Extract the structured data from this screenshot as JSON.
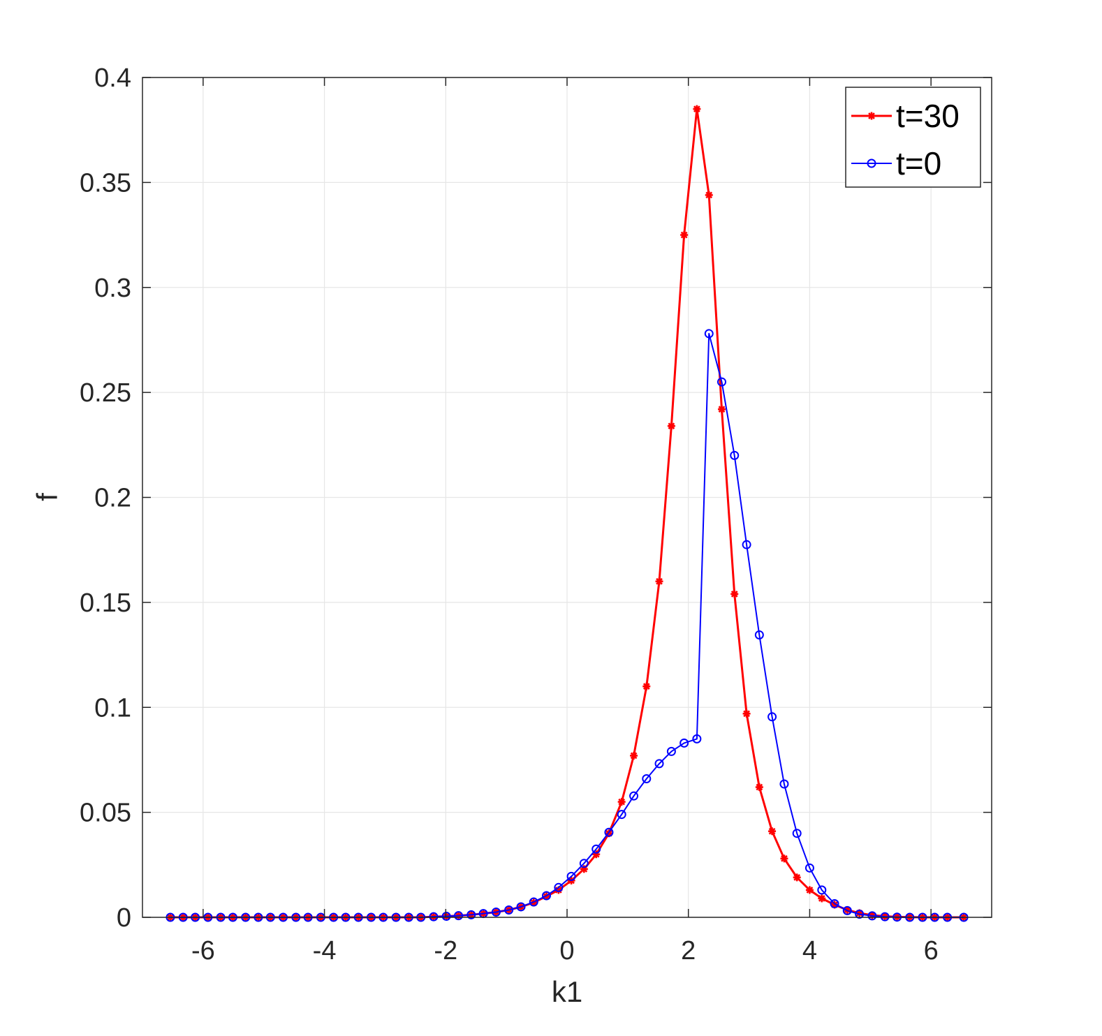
{
  "chart_data": {
    "type": "line",
    "title": "",
    "xlabel": "k1",
    "ylabel": "f",
    "xlim": [
      -7,
      7
    ],
    "ylim": [
      0,
      0.4
    ],
    "xticks": [
      "-6",
      "-4",
      "-2",
      "0",
      "2",
      "4",
      "6"
    ],
    "yticks": [
      "0",
      "0.05",
      "0.1",
      "0.15",
      "0.2",
      "0.25",
      "0.3",
      "0.35",
      "0.4"
    ],
    "grid": true,
    "legend_position": "top-right",
    "x": [
      -6.54,
      -6.33,
      -6.13,
      -5.92,
      -5.71,
      -5.51,
      -5.3,
      -5.09,
      -4.89,
      -4.68,
      -4.47,
      -4.27,
      -4.06,
      -3.85,
      -3.65,
      -3.44,
      -3.23,
      -3.03,
      -2.82,
      -2.61,
      -2.41,
      -2.2,
      -1.99,
      -1.79,
      -1.58,
      -1.38,
      -1.17,
      -0.96,
      -0.76,
      -0.55,
      -0.34,
      -0.14,
      0.07,
      0.28,
      0.48,
      0.69,
      0.9,
      1.1,
      1.31,
      1.52,
      1.72,
      1.93,
      2.14,
      2.34,
      2.55,
      2.76,
      2.96,
      3.17,
      3.38,
      3.58,
      3.79,
      4.0,
      4.2,
      4.41,
      4.62,
      4.82,
      5.03,
      5.24,
      5.44,
      5.65,
      5.86,
      6.06,
      6.27,
      6.54
    ],
    "series": [
      {
        "name": "t=30",
        "color": "#ff0000",
        "marker": "asterisk",
        "values": [
          0,
          0,
          0,
          0,
          0,
          0,
          0,
          0,
          0,
          0,
          0,
          0,
          0,
          0,
          0,
          0,
          0,
          0,
          0,
          0,
          0,
          0.0003,
          0.0005,
          0.0008,
          0.0012,
          0.0018,
          0.0025,
          0.0035,
          0.005,
          0.007,
          0.01,
          0.013,
          0.0175,
          0.023,
          0.03,
          0.04,
          0.055,
          0.077,
          0.11,
          0.16,
          0.234,
          0.325,
          0.385,
          0.344,
          0.242,
          0.154,
          0.097,
          0.062,
          0.041,
          0.028,
          0.019,
          0.013,
          0.009,
          0.006,
          0.0035,
          0.002,
          0.001,
          0.0005,
          0.0002,
          0.0001,
          0,
          0,
          0,
          0
        ]
      },
      {
        "name": "t=0",
        "color": "#0000ff",
        "marker": "circle",
        "values": [
          0,
          0,
          0,
          0,
          0,
          0,
          0,
          0,
          0,
          0,
          0,
          0,
          0,
          0,
          0,
          0,
          0,
          0,
          0,
          0,
          0,
          0.0003,
          0.0005,
          0.0008,
          0.0012,
          0.0018,
          0.0025,
          0.0035,
          0.005,
          0.0073,
          0.0103,
          0.0142,
          0.0195,
          0.0257,
          0.0325,
          0.0405,
          0.049,
          0.0578,
          0.066,
          0.0732,
          0.079,
          0.083,
          0.085,
          0.278,
          0.255,
          0.22,
          0.1775,
          0.1345,
          0.0955,
          0.0635,
          0.04,
          0.0235,
          0.013,
          0.0065,
          0.0032,
          0.0015,
          0.0007,
          0.0003,
          0.0001,
          0,
          0,
          0,
          0,
          0
        ]
      }
    ]
  }
}
